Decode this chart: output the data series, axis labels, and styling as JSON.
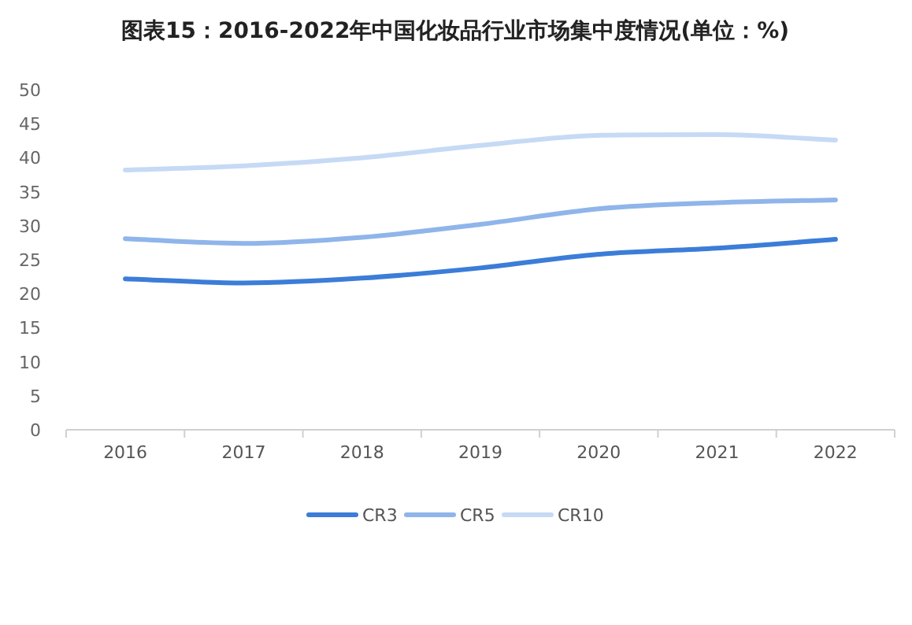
{
  "chart_data": {
    "type": "line",
    "title": "图表15：2016-2022年中国化妆品行业市场集中度情况(单位：%)",
    "categories": [
      "2016",
      "2017",
      "2018",
      "2019",
      "2020",
      "2021",
      "2022"
    ],
    "series": [
      {
        "name": "CR3",
        "color": "#3b7dd8",
        "values": [
          22.2,
          21.6,
          22.3,
          23.8,
          25.8,
          26.7,
          28.0
        ]
      },
      {
        "name": "CR5",
        "color": "#8fb5ea",
        "values": [
          28.1,
          27.4,
          28.3,
          30.2,
          32.5,
          33.4,
          33.8
        ]
      },
      {
        "name": "CR10",
        "color": "#c6daf5",
        "values": [
          38.2,
          38.8,
          40.0,
          41.8,
          43.3,
          43.4,
          42.6
        ]
      }
    ],
    "ylim": [
      0,
      50
    ],
    "yticks": [
      0,
      5,
      10,
      15,
      20,
      25,
      30,
      35,
      40,
      45,
      50
    ],
    "legend": "bottom"
  }
}
